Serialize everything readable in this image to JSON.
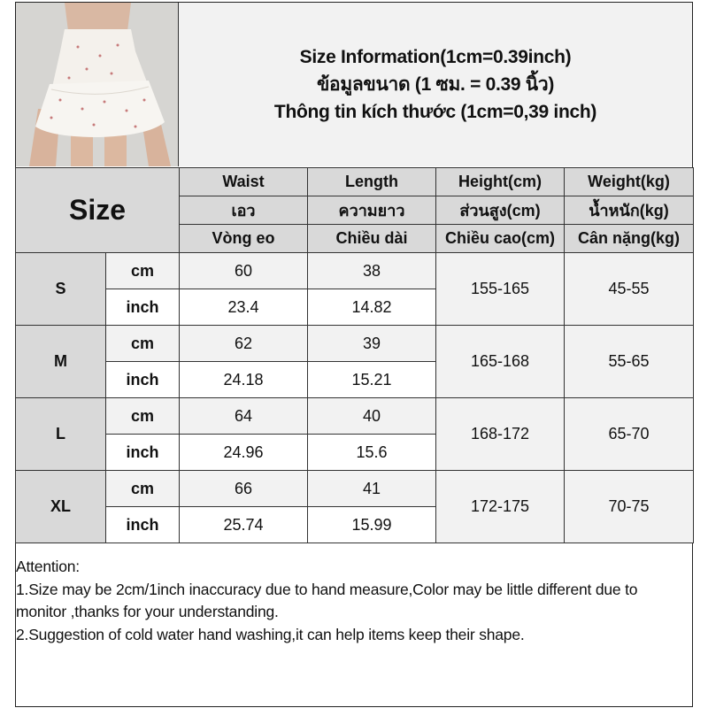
{
  "photo": {
    "alt": "white tiered ruffle mini skirt with small floral print"
  },
  "title": {
    "line1": "Size Information(1cm=0.39inch)",
    "line2": "ข้อมูลขนาด (1 ซม. = 0.39 นิ้ว)",
    "line3": "Thông tin kích thước (1cm=0,39 inch)"
  },
  "table": {
    "size_header": "Size",
    "columns": [
      {
        "en": "Waist",
        "th": "เอว",
        "vi": "Vòng eo"
      },
      {
        "en": "Length",
        "th": "ความยาว",
        "vi": "Chiều dài"
      },
      {
        "en": "Height(cm)",
        "th": "ส่วนสูง(cm)",
        "vi": "Chiều cao(cm)"
      },
      {
        "en": "Weight(kg)",
        "th": "น้ำหนัก(kg)",
        "vi": "Cân nặng(kg)"
      }
    ],
    "unit_cm": "cm",
    "unit_inch": "inch",
    "rows": [
      {
        "size": "S",
        "waist_cm": "60",
        "length_cm": "38",
        "waist_inch": "23.4",
        "length_inch": "14.82",
        "height": "155-165",
        "weight": "45-55"
      },
      {
        "size": "M",
        "waist_cm": "62",
        "length_cm": "39",
        "waist_inch": "24.18",
        "length_inch": "15.21",
        "height": "165-168",
        "weight": "55-65"
      },
      {
        "size": "L",
        "waist_cm": "64",
        "length_cm": "40",
        "waist_inch": "24.96",
        "length_inch": "15.6",
        "height": "168-172",
        "weight": "65-70"
      },
      {
        "size": "XL",
        "waist_cm": "66",
        "length_cm": "41",
        "waist_inch": "25.74",
        "length_inch": "15.99",
        "height": "172-175",
        "weight": "70-75"
      }
    ]
  },
  "attention": {
    "heading": "Attention:",
    "note1": "1.Size may be 2cm/1inch inaccuracy due to hand measure,Color may be little different due to monitor ,thanks for your understanding.",
    "note2": "2.Suggestion of cold water hand washing,it can help items keep their shape."
  },
  "colors": {
    "header_gray": "#d9d9d9",
    "light_gray": "#f2f2f2",
    "border": "#333333"
  }
}
